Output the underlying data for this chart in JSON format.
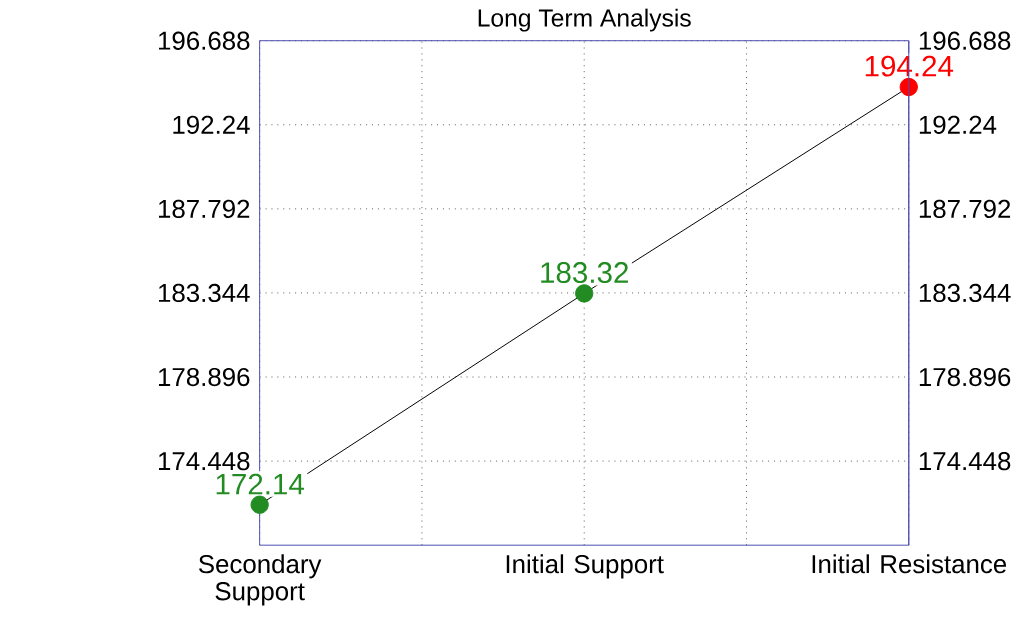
{
  "chart_data": {
    "type": "line",
    "title": "Long Term Analysis",
    "categories": [
      "Secondary Support",
      "Initial Support",
      "Initial Resistance"
    ],
    "series": [
      {
        "color": "#000000",
        "colors": [
          "#228b22",
          "#228b22",
          "#ff0000"
        ],
        "values": [
          172.14,
          183.32,
          194.24
        ],
        "value_labels": [
          "172.14",
          "183.32",
          "194.24"
        ]
      }
    ],
    "ylim": [
      170,
      196.688
    ],
    "yticks": [
      174.448,
      178.896,
      183.344,
      187.792,
      192.24,
      196.688
    ],
    "y2lim": [
      170,
      196.688
    ],
    "y2ticks": [
      174.448,
      178.896,
      183.344,
      187.792,
      192.24,
      196.688
    ],
    "grid": true,
    "marker": "circle",
    "line_style": "solid"
  }
}
